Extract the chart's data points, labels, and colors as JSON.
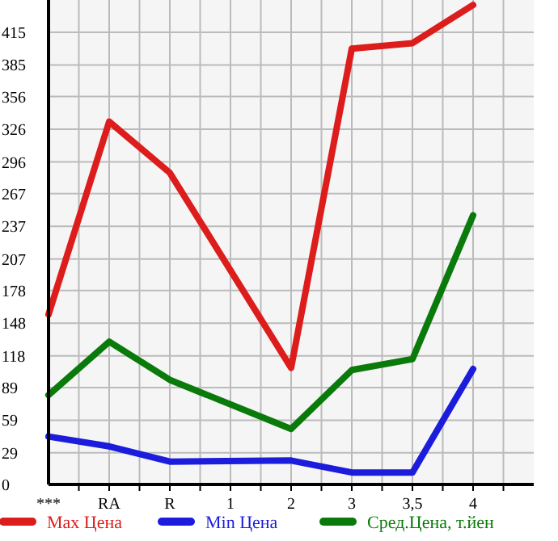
{
  "chart_data": {
    "type": "line",
    "categories": [
      "***",
      "RA",
      "R",
      "1",
      "2",
      "3",
      "3,5",
      "4"
    ],
    "series": [
      {
        "name": "Max Цена",
        "color": "#dd1c1c",
        "values": [
          156,
          333,
          286,
          null,
          107,
          400,
          405,
          440
        ]
      },
      {
        "name": "Min Цена",
        "color": "#1c1cdd",
        "values": [
          44,
          35,
          21,
          null,
          22,
          11,
          11,
          106
        ]
      },
      {
        "name": "Сред.Цена, т.йен",
        "color": "#0a7a0a",
        "values": [
          82,
          131,
          96,
          null,
          51,
          105,
          115,
          247
        ]
      }
    ],
    "ylim": [
      0,
      444.6
    ],
    "yticks": [
      0,
      29,
      59,
      89,
      118,
      148,
      178,
      207,
      237,
      267,
      296,
      326,
      356,
      385,
      415
    ],
    "grid": true,
    "legend": "bottom",
    "marker": "none",
    "line_style": "solid"
  }
}
